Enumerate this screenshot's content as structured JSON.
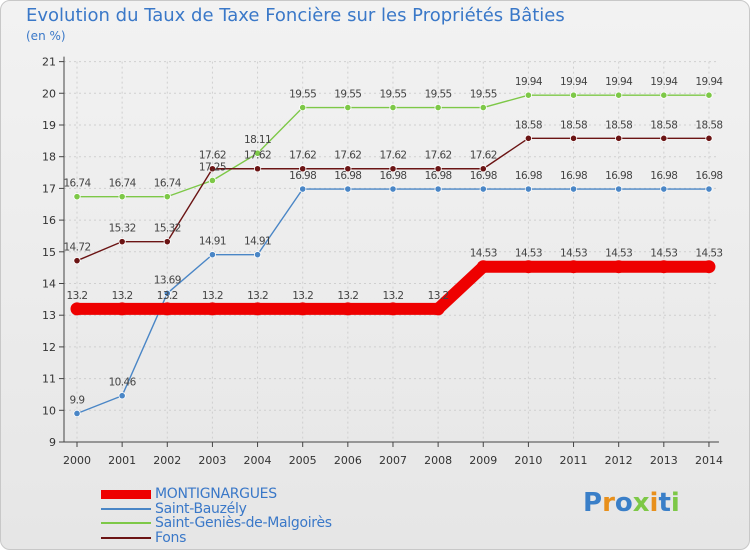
{
  "header": {
    "title": "Evolution du Taux de Taxe Foncière sur les Propriétés Bâties",
    "unit": "(en %)"
  },
  "chart_data": {
    "type": "line",
    "title": "Evolution du Taux de Taxe Foncière sur les Propriétés Bâties",
    "ylabel": "(en %)",
    "xlabel": "",
    "ylim": [
      9,
      21
    ],
    "yticks": [
      "9",
      "10",
      "11",
      "12",
      "13",
      "14",
      "15",
      "16",
      "17",
      "18",
      "19",
      "20",
      "21"
    ],
    "categories": [
      "2000",
      "2001",
      "2002",
      "2003",
      "2004",
      "2005",
      "2006",
      "2007",
      "2008",
      "2009",
      "2010",
      "2011",
      "2012",
      "2013",
      "2014"
    ],
    "grid": true,
    "series": [
      {
        "name": "MONTIGNARGUES",
        "color": "#ee0000",
        "thick": true,
        "values": [
          13.2,
          13.2,
          13.2,
          13.2,
          13.2,
          13.2,
          13.2,
          13.2,
          13.2,
          14.53,
          14.53,
          14.53,
          14.53,
          14.53,
          14.53
        ],
        "labels": [
          "13.2",
          "13.2",
          "13.2",
          "13.2",
          "13.2",
          "13.2",
          "13.2",
          "13.2",
          "13.2",
          "14.53",
          "14.53",
          "14.53",
          "14.53",
          "14.53",
          "14.53"
        ]
      },
      {
        "name": "Saint-Bauzély",
        "color": "#4a86c6",
        "thick": false,
        "values": [
          9.9,
          10.46,
          13.69,
          14.91,
          14.91,
          16.98,
          16.98,
          16.98,
          16.98,
          16.98,
          16.98,
          16.98,
          16.98,
          16.98,
          16.98
        ],
        "labels": [
          "9.9",
          "10.46",
          "13.69",
          "14.91",
          "14.91",
          "16.98",
          "16.98",
          "16.98",
          "16.98",
          "16.98",
          "16.98",
          "16.98",
          "16.98",
          "16.98",
          "16.98"
        ]
      },
      {
        "name": "Saint-Geniès-de-Malgoirès",
        "color": "#7dc847",
        "thick": false,
        "values": [
          16.74,
          16.74,
          16.74,
          17.25,
          18.11,
          19.55,
          19.55,
          19.55,
          19.55,
          19.55,
          19.94,
          19.94,
          19.94,
          19.94,
          19.94
        ],
        "labels": [
          "16.74",
          "16.74",
          "16.74",
          "17.25",
          "18.11",
          "19.55",
          "19.55",
          "19.55",
          "19.55",
          "19.55",
          "19.94",
          "19.94",
          "19.94",
          "19.94",
          "19.94"
        ]
      },
      {
        "name": "Fons",
        "color": "#6b1414",
        "thick": false,
        "values": [
          14.72,
          15.32,
          15.32,
          17.62,
          17.62,
          17.62,
          17.62,
          17.62,
          17.62,
          17.62,
          18.58,
          18.58,
          18.58,
          18.58,
          18.58
        ],
        "labels": [
          "14.72",
          "15.32",
          "15.32",
          "17.62",
          "17.62",
          "17.62",
          "17.62",
          "17.62",
          "17.62",
          "17.62",
          "18.58",
          "18.58",
          "18.58",
          "18.58",
          "18.58"
        ]
      }
    ],
    "legend_placement": "bottom-left"
  },
  "legend": {
    "items": [
      {
        "label": "MONTIGNARGUES",
        "color": "#ee0000"
      },
      {
        "label": "Saint-Bauzély",
        "color": "#4a86c6"
      },
      {
        "label": "Saint-Geniès-de-Malgoirès",
        "color": "#7dc847"
      },
      {
        "label": "Fons",
        "color": "#6b1414"
      }
    ]
  },
  "logo": {
    "text": "Proxiti",
    "letter_colors": [
      "#3a7fc8",
      "#e8901c",
      "#3a7fc8",
      "#7dc847",
      "#e8901c",
      "#3a7fc8",
      "#7dc847"
    ]
  }
}
